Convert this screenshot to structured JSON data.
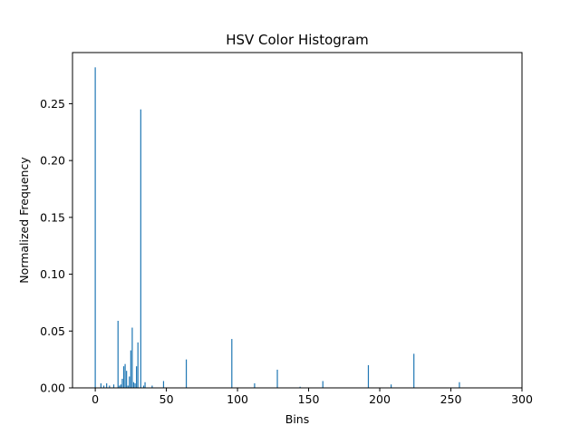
{
  "chart_data": {
    "type": "bar",
    "title": "HSV Color Histogram",
    "xlabel": "Bins",
    "ylabel": "Normalized Frequency",
    "xlim": [
      -16,
      300
    ],
    "ylim": [
      0,
      0.295
    ],
    "x_ticks": [
      0,
      50,
      100,
      150,
      200,
      250,
      300
    ],
    "x_tick_labels": [
      "0",
      "50",
      "100",
      "150",
      "200",
      "250",
      "300"
    ],
    "y_ticks": [
      0.0,
      0.05,
      0.1,
      0.15,
      0.2,
      0.25
    ],
    "y_tick_labels": [
      "0.00",
      "0.05",
      "0.10",
      "0.15",
      "0.20",
      "0.25"
    ],
    "bar_color": "#1f77b4",
    "grid": false,
    "legend": "none",
    "bars": [
      {
        "x": 0,
        "y": 0.282
      },
      {
        "x": 4,
        "y": 0.004
      },
      {
        "x": 6,
        "y": 0.002
      },
      {
        "x": 8,
        "y": 0.004
      },
      {
        "x": 10,
        "y": 0.002
      },
      {
        "x": 13,
        "y": 0.003
      },
      {
        "x": 16,
        "y": 0.059
      },
      {
        "x": 17,
        "y": 0.002
      },
      {
        "x": 18,
        "y": 0.003
      },
      {
        "x": 19,
        "y": 0.008
      },
      {
        "x": 20,
        "y": 0.019
      },
      {
        "x": 21,
        "y": 0.021
      },
      {
        "x": 22,
        "y": 0.015
      },
      {
        "x": 23,
        "y": 0.002
      },
      {
        "x": 24,
        "y": 0.01
      },
      {
        "x": 25,
        "y": 0.033
      },
      {
        "x": 26,
        "y": 0.053
      },
      {
        "x": 27,
        "y": 0.005
      },
      {
        "x": 28,
        "y": 0.004
      },
      {
        "x": 29,
        "y": 0.019
      },
      {
        "x": 30,
        "y": 0.04
      },
      {
        "x": 32,
        "y": 0.245
      },
      {
        "x": 34,
        "y": 0.002
      },
      {
        "x": 35,
        "y": 0.005
      },
      {
        "x": 40,
        "y": 0.002
      },
      {
        "x": 48,
        "y": 0.006
      },
      {
        "x": 64,
        "y": 0.025
      },
      {
        "x": 96,
        "y": 0.043
      },
      {
        "x": 112,
        "y": 0.004
      },
      {
        "x": 128,
        "y": 0.016
      },
      {
        "x": 144,
        "y": 0.001
      },
      {
        "x": 160,
        "y": 0.006
      },
      {
        "x": 192,
        "y": 0.02
      },
      {
        "x": 208,
        "y": 0.003
      },
      {
        "x": 224,
        "y": 0.03
      },
      {
        "x": 256,
        "y": 0.005
      }
    ]
  }
}
